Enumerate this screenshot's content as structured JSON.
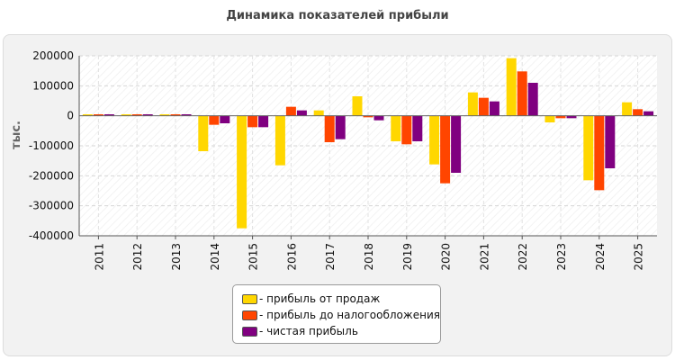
{
  "chart_data": {
    "type": "bar",
    "title": "Динамика показателей прибыли",
    "ylabel": "тыс.",
    "xlabel": "",
    "ylim": [
      -400000,
      200000
    ],
    "yticks": [
      200000,
      100000,
      0,
      -100000,
      -200000,
      -300000,
      -400000
    ],
    "categories": [
      "2011",
      "2012",
      "2013",
      "2014",
      "2015",
      "2016",
      "2017",
      "2018",
      "2019",
      "2020",
      "2021",
      "2022",
      "2023",
      "2024",
      "2025"
    ],
    "series": [
      {
        "name": "- прибыль от продаж",
        "color": "#ffd700",
        "values": [
          5000,
          5000,
          5000,
          -118000,
          -375000,
          -165000,
          18000,
          65000,
          -85000,
          -162000,
          78000,
          192000,
          -22000,
          -215000,
          45000
        ]
      },
      {
        "name": "- прибыль до налогообложения",
        "color": "#ff4500",
        "values": [
          5000,
          5000,
          5000,
          -30000,
          -38000,
          30000,
          -88000,
          -5000,
          -95000,
          -225000,
          60000,
          148000,
          -8000,
          -248000,
          22000
        ]
      },
      {
        "name": "- чистая прибыль",
        "color": "#800080",
        "values": [
          5000,
          5000,
          5000,
          -25000,
          -38000,
          18000,
          -78000,
          -15000,
          -85000,
          -190000,
          48000,
          110000,
          -8000,
          -175000,
          15000
        ]
      }
    ],
    "grid": true,
    "legend_position": "bottom-center"
  }
}
